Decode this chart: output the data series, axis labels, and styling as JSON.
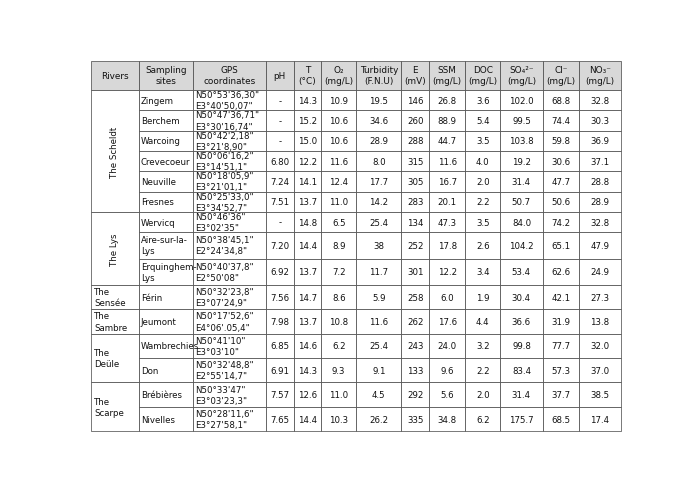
{
  "headers": [
    "Rivers",
    "Sampling\nsites",
    "GPS\ncoordinates",
    "pH",
    "T\n(°C)",
    "O₂\n(mg/L)",
    "Turbidity\n(F.N.U)",
    "E\n(mV)",
    "SSM\n(mg/L)",
    "DOC\n(mg/L)",
    "SO₄²⁻\n(mg/L)",
    "Cl⁻\n(mg/L)",
    "NO₃⁻\n(mg/L)"
  ],
  "rows": [
    [
      "The Scheldt",
      "Zingem",
      "N50°53'36,30\"\nE3°40'50,07\"",
      "-",
      "14.3",
      "10.9",
      "19.5",
      "146",
      "26.8",
      "3.6",
      "102.0",
      "68.8",
      "32.8"
    ],
    [
      "The Scheldt",
      "Berchem",
      "N50°47'36,71\"\nE3°30'16,74\"",
      "-",
      "15.2",
      "10.6",
      "34.6",
      "260",
      "88.9",
      "5.4",
      "99.5",
      "74.4",
      "30.3"
    ],
    [
      "The Scheldt",
      "Warcoing",
      "N50°42'2,18\"\nE3°21'8,90\"",
      "-",
      "15.0",
      "10.6",
      "28.9",
      "288",
      "44.7",
      "3.5",
      "103.8",
      "59.8",
      "36.9"
    ],
    [
      "The Scheldt",
      "Crevecoeur",
      "N50°06'16,2\"\nE3°14'51,1\"",
      "6.80",
      "12.2",
      "11.6",
      "8.0",
      "315",
      "11.6",
      "4.0",
      "19.2",
      "30.6",
      "37.1"
    ],
    [
      "The Scheldt",
      "Neuville",
      "N50°18'05,9\"\nE3°21'01,1\"",
      "7.24",
      "14.1",
      "12.4",
      "17.7",
      "305",
      "16.7",
      "2.0",
      "31.4",
      "47.7",
      "28.8"
    ],
    [
      "The Scheldt",
      "Fresnes",
      "N50°25'33,0\"\nE3°34'52,7\"",
      "7.51",
      "13.7",
      "11.0",
      "14.2",
      "283",
      "20.1",
      "2.2",
      "50.7",
      "50.6",
      "28.9"
    ],
    [
      "The Lys",
      "Wervicq",
      "N50°46'36\"\nE3°02'35\"",
      "-",
      "14.8",
      "6.5",
      "25.4",
      "134",
      "47.3",
      "3.5",
      "84.0",
      "74.2",
      "32.8"
    ],
    [
      "The Lys",
      "Aire-sur-la-\nLys",
      "N50°38'45,1\"\nE2°24'34,8\"",
      "7.20",
      "14.4",
      "8.9",
      "38",
      "252",
      "17.8",
      "2.6",
      "104.2",
      "65.1",
      "47.9"
    ],
    [
      "The Lys",
      "Erquinghem-\nLys",
      "N50°40'37,8\"\nE2°50'08\"",
      "6.92",
      "13.7",
      "7.2",
      "11.7",
      "301",
      "12.2",
      "3.4",
      "53.4",
      "62.6",
      "24.9"
    ],
    [
      "The\nSensée",
      "Férin",
      "N50°32'23,8\"\nE3°07'24,9\"",
      "7.56",
      "14.7",
      "8.6",
      "5.9",
      "258",
      "6.0",
      "1.9",
      "30.4",
      "42.1",
      "27.3"
    ],
    [
      "The\nSambre",
      "Jeumont",
      "N50°17'52,6\"\nE4°06'.05,4\"",
      "7.98",
      "13.7",
      "10.8",
      "11.6",
      "262",
      "17.6",
      "4.4",
      "36.6",
      "31.9",
      "13.8"
    ],
    [
      "The\nDeüle",
      "Wambrechies",
      "N50°41'10\"\nE3°03'10\"",
      "6.85",
      "14.6",
      "6.2",
      "25.4",
      "243",
      "24.0",
      "3.2",
      "99.8",
      "77.7",
      "32.0"
    ],
    [
      "The\nDeüle",
      "Don",
      "N50°32'48,8\"\nE2°55'14,7\"",
      "6.91",
      "14.3",
      "9.3",
      "9.1",
      "133",
      "9.6",
      "2.2",
      "83.4",
      "57.3",
      "37.0"
    ],
    [
      "The\nScarpe",
      "Brébières",
      "N50°33'47\"\nE3°03'23,3\"",
      "7.57",
      "12.6",
      "11.0",
      "4.5",
      "292",
      "5.6",
      "2.0",
      "31.4",
      "37.7",
      "38.5"
    ],
    [
      "The\nScarpe",
      "Nivelles",
      "N50°28'11,6\"\nE3°27'58,1\"",
      "7.65",
      "14.4",
      "10.3",
      "26.2",
      "335",
      "34.8",
      "6.2",
      "175.7",
      "68.5",
      "17.4"
    ]
  ],
  "river_rotate": {
    "The Scheldt": true,
    "The Lys": true,
    "The\nSensée": false,
    "The\nSambre": false,
    "The\nDeüle": false,
    "The\nScarpe": false
  },
  "col_widths_rel": [
    6.5,
    7.5,
    10.0,
    3.8,
    3.8,
    4.8,
    6.2,
    3.8,
    5.0,
    4.8,
    5.8,
    5.0,
    5.8
  ],
  "header_bg": "#d8d8d8",
  "border_color": "#444444",
  "text_color": "#111111",
  "font_size": 6.2,
  "header_font_size": 6.4
}
